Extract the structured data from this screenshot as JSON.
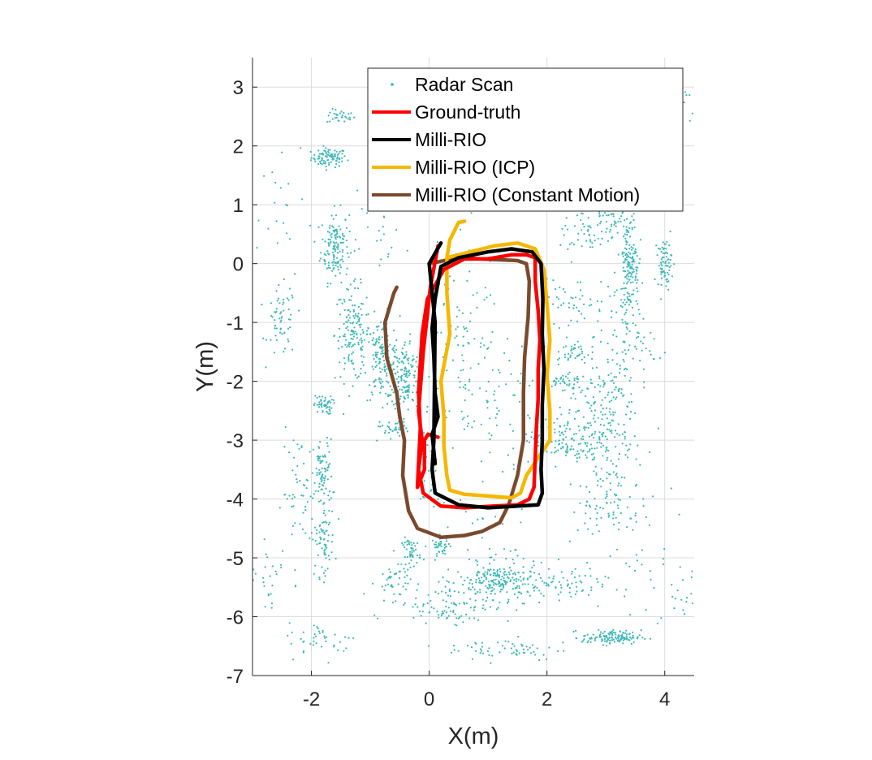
{
  "chart_data": {
    "type": "line",
    "title": "",
    "xlabel": "X(m)",
    "ylabel": "Y(m)",
    "xlim": [
      -3,
      4.5
    ],
    "ylim": [
      -7,
      3.5
    ],
    "grid": true,
    "legend_position": "top-right",
    "x_ticks": [
      -2,
      0,
      2,
      4
    ],
    "x_tick_labels": [
      "-2",
      "0",
      "2",
      "4"
    ],
    "y_ticks": [
      3,
      2,
      1,
      0,
      -1,
      -2,
      -3,
      -4,
      -5,
      -6,
      -7
    ],
    "y_tick_labels": [
      "3",
      "2",
      "1",
      "0",
      "-1",
      "-2",
      "-3",
      "-4",
      "-5",
      "-6",
      "-7"
    ],
    "scatter": {
      "name": "Radar Scan",
      "color": "#3cb7b7",
      "clusters": [
        {
          "cx": -1.7,
          "cy": 1.8,
          "sx": 0.15,
          "sy": 0.08,
          "n": 90
        },
        {
          "cx": -1.5,
          "cy": 2.5,
          "sx": 0.12,
          "sy": 0.06,
          "n": 30
        },
        {
          "cx": -1.6,
          "cy": 0.3,
          "sx": 0.12,
          "sy": 0.3,
          "n": 140
        },
        {
          "cx": -1.3,
          "cy": -1.2,
          "sx": 0.15,
          "sy": 0.4,
          "n": 150
        },
        {
          "cx": -2.5,
          "cy": -1.0,
          "sx": 0.12,
          "sy": 0.3,
          "n": 60
        },
        {
          "cx": -0.8,
          "cy": -1.6,
          "sx": 0.15,
          "sy": 0.35,
          "n": 160
        },
        {
          "cx": -0.4,
          "cy": -1.9,
          "sx": 0.12,
          "sy": 0.3,
          "n": 130
        },
        {
          "cx": -1.8,
          "cy": -2.4,
          "sx": 0.08,
          "sy": 0.08,
          "n": 50
        },
        {
          "cx": -0.6,
          "cy": -2.8,
          "sx": 0.12,
          "sy": 0.08,
          "n": 40
        },
        {
          "cx": -1.8,
          "cy": -3.6,
          "sx": 0.08,
          "sy": 0.3,
          "n": 80
        },
        {
          "cx": -1.8,
          "cy": -4.7,
          "sx": 0.1,
          "sy": 0.3,
          "n": 70
        },
        {
          "cx": -2.2,
          "cy": -3.9,
          "sx": 0.15,
          "sy": 0.5,
          "n": 50
        },
        {
          "cx": -0.3,
          "cy": -4.9,
          "sx": 0.08,
          "sy": 0.12,
          "n": 50
        },
        {
          "cx": 0.2,
          "cy": -4.8,
          "sx": 0.08,
          "sy": 0.08,
          "n": 40
        },
        {
          "cx": -0.6,
          "cy": -5.4,
          "sx": 0.15,
          "sy": 0.15,
          "n": 40
        },
        {
          "cx": 1.2,
          "cy": -5.4,
          "sx": 0.35,
          "sy": 0.15,
          "n": 200
        },
        {
          "cx": 0.4,
          "cy": -5.8,
          "sx": 0.5,
          "sy": 0.15,
          "n": 100
        },
        {
          "cx": 2.2,
          "cy": -5.5,
          "sx": 0.4,
          "sy": 0.15,
          "n": 60
        },
        {
          "cx": 3.1,
          "cy": -6.35,
          "sx": 0.25,
          "sy": 0.06,
          "n": 130
        },
        {
          "cx": 1.3,
          "cy": -6.55,
          "sx": 0.5,
          "sy": 0.1,
          "n": 60
        },
        {
          "cx": -1.8,
          "cy": -6.4,
          "sx": 0.3,
          "sy": 0.15,
          "n": 40
        },
        {
          "cx": -2.7,
          "cy": -5.4,
          "sx": 0.2,
          "sy": 0.4,
          "n": 30
        },
        {
          "cx": 3.4,
          "cy": 0.0,
          "sx": 0.08,
          "sy": 0.4,
          "n": 150
        },
        {
          "cx": 4.0,
          "cy": 0.0,
          "sx": 0.06,
          "sy": 0.2,
          "n": 70
        },
        {
          "cx": 3.1,
          "cy": 0.8,
          "sx": 0.2,
          "sy": 0.15,
          "n": 50
        },
        {
          "cx": 3.3,
          "cy": -1.3,
          "sx": 0.25,
          "sy": 0.5,
          "n": 100
        },
        {
          "cx": 2.9,
          "cy": -2.4,
          "sx": 0.3,
          "sy": 0.4,
          "n": 110
        },
        {
          "cx": 2.3,
          "cy": -3.0,
          "sx": 0.3,
          "sy": 0.2,
          "n": 120
        },
        {
          "cx": 3.1,
          "cy": -3.1,
          "sx": 0.25,
          "sy": 0.4,
          "n": 80
        },
        {
          "cx": 3.0,
          "cy": -4.1,
          "sx": 0.3,
          "sy": 0.25,
          "n": 70
        },
        {
          "cx": 2.4,
          "cy": -1.5,
          "sx": 0.15,
          "sy": 0.1,
          "n": 40
        },
        {
          "cx": 2.3,
          "cy": -2.0,
          "sx": 0.15,
          "sy": 0.08,
          "n": 40
        },
        {
          "cx": 2.7,
          "cy": 0.5,
          "sx": 0.25,
          "sy": 0.2,
          "n": 50
        },
        {
          "cx": 2.4,
          "cy": -0.7,
          "sx": 0.2,
          "sy": 0.2,
          "n": 40
        },
        {
          "cx": 0.5,
          "cy": -1.5,
          "sx": 0.35,
          "sy": 1.0,
          "n": 110
        },
        {
          "cx": 1.2,
          "cy": -2.6,
          "sx": 0.4,
          "sy": 0.8,
          "n": 70
        },
        {
          "cx": 0.3,
          "cy": 1.3,
          "sx": 0.6,
          "sy": 0.3,
          "n": 30
        },
        {
          "cx": 0.0,
          "cy": -3.4,
          "sx": 0.1,
          "sy": 0.4,
          "n": 30
        },
        {
          "cx": -0.9,
          "cy": 0.6,
          "sx": 0.3,
          "sy": 0.3,
          "n": 25
        },
        {
          "cx": 4.3,
          "cy": 2.9,
          "sx": 0.15,
          "sy": 0.3,
          "n": 15
        },
        {
          "cx": -2.5,
          "cy": 1.2,
          "sx": 0.3,
          "sy": 0.6,
          "n": 20
        },
        {
          "cx": 0.9,
          "cy": -4.9,
          "sx": 0.5,
          "sy": 0.3,
          "n": 40
        },
        {
          "cx": 3.8,
          "cy": -5.0,
          "sx": 0.4,
          "sy": 0.5,
          "n": 30
        },
        {
          "cx": 4.3,
          "cy": -5.6,
          "sx": 0.2,
          "sy": 0.3,
          "n": 20
        }
      ]
    },
    "series": [
      {
        "name": "Ground-truth",
        "color": "#ff0000",
        "x": [
          0.15,
          -0.02,
          -0.08,
          -0.08,
          -0.2,
          -0.15,
          -0.18,
          -0.15,
          -0.12,
          -0.03,
          0.25,
          0.6,
          1.0,
          1.4,
          1.65,
          1.8,
          1.8,
          1.85,
          1.88,
          1.85,
          1.85,
          1.82,
          1.8,
          1.78,
          1.7,
          1.5,
          1.1,
          0.6,
          0.2,
          -0.1,
          -0.18,
          -0.12,
          -0.18,
          -0.1,
          0.02,
          0.15
        ],
        "y": [
          -2.95,
          -2.9,
          -3.0,
          -3.5,
          -3.8,
          -2.8,
          -2.2,
          -1.7,
          -1.2,
          -0.6,
          -0.1,
          0.08,
          0.08,
          0.15,
          0.15,
          0.1,
          -0.3,
          -0.8,
          -1.3,
          -1.8,
          -2.3,
          -2.8,
          -3.3,
          -3.8,
          -4.0,
          -4.1,
          -4.12,
          -4.15,
          -4.12,
          -3.9,
          -3.5,
          -3.0,
          -2.5,
          -1.5,
          -0.4,
          0.3
        ]
      },
      {
        "name": "Milli-RIO",
        "color": "#000000",
        "x": [
          0.1,
          0.05,
          0.15,
          0.1,
          0.08,
          0.05,
          0.1,
          0.2,
          0.5,
          1.0,
          1.4,
          1.75,
          1.9,
          1.93,
          1.92,
          1.95,
          1.92,
          1.92,
          1.9,
          1.92,
          1.85,
          1.5,
          1.0,
          0.5,
          0.1,
          0.05,
          0.08,
          0.1,
          0.0,
          0.2
        ],
        "y": [
          -3.4,
          -2.9,
          -2.6,
          -2.2,
          -1.6,
          -1.1,
          -0.6,
          -0.05,
          0.1,
          0.2,
          0.25,
          0.2,
          0.0,
          -0.6,
          -1.2,
          -1.8,
          -2.4,
          -3.0,
          -3.5,
          -3.9,
          -4.1,
          -4.12,
          -4.15,
          -4.1,
          -3.9,
          -3.5,
          -3.0,
          -1.0,
          0.0,
          0.35
        ]
      },
      {
        "name": "Milli-RIO (ICP)",
        "color": "#f5b700",
        "x": [
          0.6,
          0.5,
          0.45,
          0.35,
          0.3,
          0.3,
          0.35,
          0.2,
          0.25,
          0.25,
          0.28,
          0.3,
          0.35,
          0.6,
          1.0,
          1.4,
          1.55,
          1.65,
          2.05,
          2.05,
          2.0,
          2.05,
          2.0,
          1.95,
          1.8,
          1.5,
          1.1,
          0.7,
          0.3
        ],
        "y": [
          0.72,
          0.7,
          0.6,
          0.4,
          0.1,
          -0.5,
          -1.2,
          -2.0,
          -2.6,
          -3.1,
          -3.4,
          -3.6,
          -3.85,
          -3.92,
          -3.95,
          -3.98,
          -3.9,
          -3.6,
          -3.0,
          -2.5,
          -1.9,
          -1.3,
          -0.7,
          -0.1,
          0.25,
          0.35,
          0.3,
          0.2,
          0.1
        ]
      },
      {
        "name": "Milli-RIO (Constant Motion)",
        "color": "#7a4a2e",
        "x": [
          -0.55,
          -0.6,
          -0.75,
          -0.72,
          -0.55,
          -0.5,
          -0.42,
          -0.45,
          -0.35,
          -0.2,
          0.2,
          0.6,
          0.9,
          1.2,
          1.35,
          1.5,
          1.6,
          1.6,
          1.62,
          1.68,
          1.7,
          1.65,
          1.5,
          1.1,
          0.5,
          0.0
        ],
        "y": [
          -0.4,
          -0.5,
          -1.0,
          -1.6,
          -2.2,
          -2.6,
          -3.0,
          -3.6,
          -4.2,
          -4.5,
          -4.65,
          -4.62,
          -4.55,
          -4.4,
          -4.1,
          -3.6,
          -3.0,
          -2.2,
          -1.6,
          -0.9,
          -0.3,
          0.0,
          0.05,
          0.07,
          0.1,
          0.0
        ]
      }
    ],
    "legend": [
      "Radar Scan",
      "Ground-truth",
      "Milli-RIO",
      "Milli-RIO (ICP)",
      "Milli-RIO (Constant Motion)"
    ]
  }
}
